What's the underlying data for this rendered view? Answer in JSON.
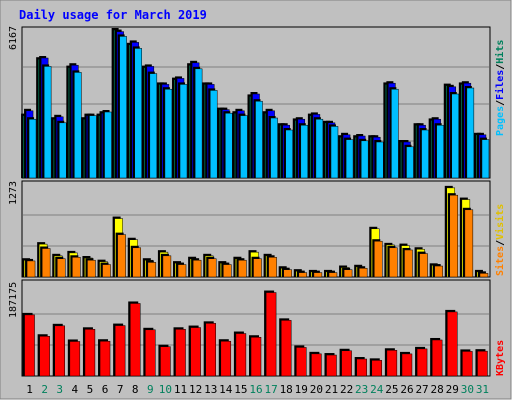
{
  "chart_data": [
    {
      "type": "bar",
      "title": "Daily usage for March 2019",
      "categories": [
        "1",
        "2",
        "3",
        "4",
        "5",
        "6",
        "7",
        "8",
        "9",
        "10",
        "11",
        "12",
        "13",
        "14",
        "15",
        "16",
        "17",
        "18",
        "19",
        "20",
        "21",
        "22",
        "23",
        "24",
        "25",
        "26",
        "27",
        "28",
        "29",
        "30",
        "31"
      ],
      "weekend_days": [
        "2",
        "3",
        "9",
        "10",
        "16",
        "17",
        "23",
        "24",
        "30",
        "31"
      ],
      "y_max_label": "6167",
      "ylim": [
        0,
        6167
      ],
      "series": [
        {
          "name": "Hits",
          "color": "#00805c",
          "values": [
            2600,
            4950,
            2450,
            4600,
            2450,
            2600,
            6167,
            5550,
            4600,
            3900,
            4100,
            4700,
            3900,
            2850,
            2700,
            3400,
            2700,
            2200,
            2400,
            2600,
            2300,
            1700,
            1700,
            1700,
            3900,
            1500,
            2200,
            2400,
            3850,
            3900,
            1800
          ]
        },
        {
          "name": "Files",
          "color": "#0000ff",
          "values": [
            2800,
            5000,
            2550,
            4700,
            2600,
            2700,
            6100,
            5650,
            4650,
            3900,
            4150,
            4800,
            3900,
            2850,
            2800,
            3500,
            2800,
            2200,
            2450,
            2650,
            2300,
            1800,
            1750,
            1700,
            3950,
            1500,
            2200,
            2450,
            3800,
            3950,
            1800
          ]
        },
        {
          "name": "Pages",
          "color": "#00c0ff",
          "values": [
            2450,
            4650,
            2300,
            4400,
            2600,
            2750,
            5900,
            5400,
            4350,
            3700,
            3900,
            4550,
            3650,
            2700,
            2600,
            3200,
            2500,
            2000,
            2200,
            2450,
            2150,
            1600,
            1550,
            1500,
            3700,
            1300,
            2000,
            2200,
            3500,
            3750,
            1600
          ]
        }
      ]
    },
    {
      "type": "bar",
      "categories": [
        "1",
        "2",
        "3",
        "4",
        "5",
        "6",
        "7",
        "8",
        "9",
        "10",
        "11",
        "12",
        "13",
        "14",
        "15",
        "16",
        "17",
        "18",
        "19",
        "20",
        "21",
        "22",
        "23",
        "24",
        "25",
        "26",
        "27",
        "28",
        "29",
        "30",
        "31"
      ],
      "y_max_label": "1273",
      "ylim": [
        0,
        1273
      ],
      "series": [
        {
          "name": "Visits",
          "color": "#ffff00",
          "values": [
            230,
            450,
            290,
            330,
            260,
            210,
            800,
            510,
            230,
            340,
            190,
            250,
            290,
            190,
            250,
            340,
            290,
            120,
            80,
            70,
            70,
            130,
            140,
            660,
            440,
            430,
            380,
            160,
            1220,
            1060,
            70
          ]
        },
        {
          "name": "Sites",
          "color": "#ff8000",
          "values": [
            220,
            390,
            250,
            270,
            230,
            170,
            580,
            400,
            200,
            290,
            170,
            230,
            250,
            170,
            230,
            250,
            270,
            100,
            60,
            60,
            60,
            100,
            120,
            490,
            400,
            370,
            320,
            150,
            1120,
            920,
            50
          ]
        }
      ]
    },
    {
      "type": "bar",
      "categories": [
        "1",
        "2",
        "3",
        "4",
        "5",
        "6",
        "7",
        "8",
        "9",
        "10",
        "11",
        "12",
        "13",
        "14",
        "15",
        "16",
        "17",
        "18",
        "19",
        "20",
        "21",
        "22",
        "23",
        "24",
        "25",
        "26",
        "27",
        "28",
        "29",
        "30",
        "31"
      ],
      "y_max_label": "187175",
      "ylim": [
        0,
        187175
      ],
      "series": [
        {
          "name": "KBytes",
          "color": "#ff0000",
          "values": [
            123000,
            80000,
            101000,
            69500,
            94000,
            70000,
            101500,
            146000,
            93000,
            59000,
            94000,
            97500,
            106000,
            70000,
            85500,
            78000,
            168000,
            112000,
            57500,
            44600,
            42200,
            50800,
            34200,
            31500,
            51800,
            44500,
            54600,
            72500,
            129000,
            49500,
            50000
          ]
        }
      ]
    }
  ]
}
